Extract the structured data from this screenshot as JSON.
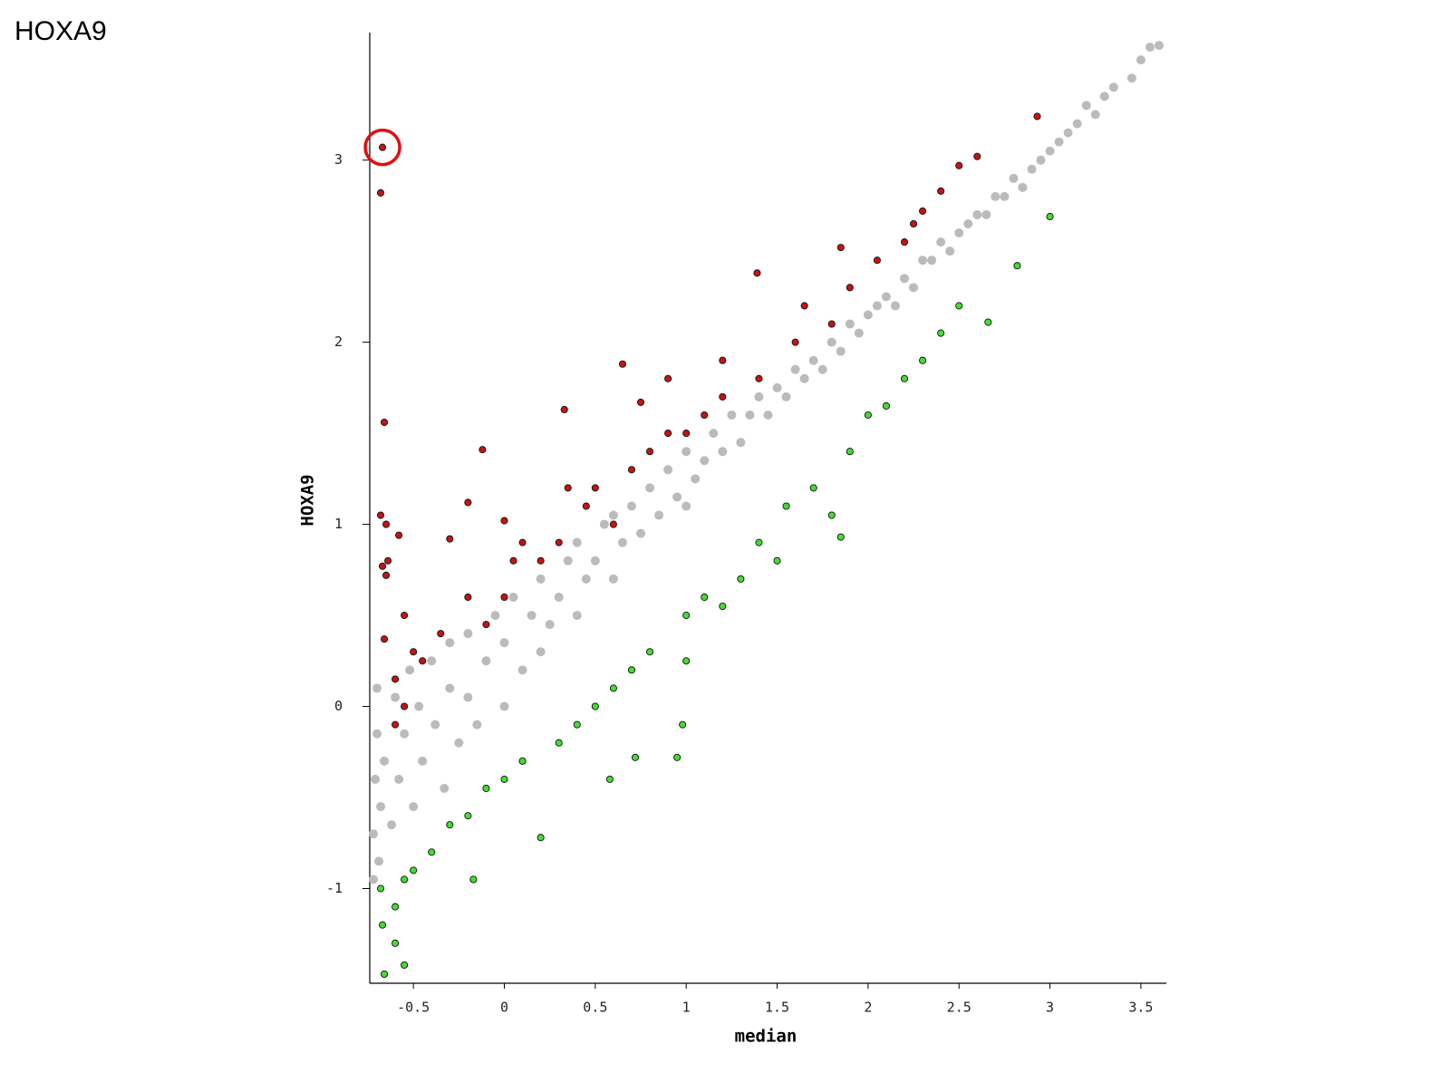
{
  "chart_data": {
    "type": "scatter",
    "title": "HOXA9",
    "x_label": "median",
    "y_label": "HOXA9",
    "xlim": [
      -0.74,
      3.64
    ],
    "ylim": [
      -1.52,
      3.7
    ],
    "xticks": [
      -0.5,
      0,
      0.5,
      1,
      1.5,
      2,
      2.5,
      3,
      3.5
    ],
    "yticks": [
      -1,
      0,
      1,
      2,
      3
    ],
    "highlight_color": "#e01010",
    "series": [
      {
        "color": "#bbbbbb",
        "outline": false,
        "x": [
          -0.72,
          -0.72,
          -0.71,
          -0.7,
          -0.7,
          -0.69,
          -0.68,
          -0.66,
          -0.62,
          -0.6,
          -0.58,
          -0.55,
          -0.52,
          -0.5,
          -0.47,
          -0.45,
          -0.4,
          -0.38,
          -0.33,
          -0.3,
          -0.3,
          -0.25,
          -0.2,
          -0.2,
          -0.15,
          -0.1,
          -0.05,
          0,
          0,
          0.05,
          0.1,
          0.15,
          0.2,
          0.2,
          0.25,
          0.3,
          0.35,
          0.4,
          0.4,
          0.45,
          0.5,
          0.55,
          0.6,
          0.6,
          0.65,
          0.7,
          0.75,
          0.8,
          0.85,
          0.9,
          0.95,
          1.0,
          1.0,
          1.05,
          1.1,
          1.15,
          1.2,
          1.25,
          1.3,
          1.35,
          1.4,
          1.45,
          1.5,
          1.55,
          1.6,
          1.65,
          1.7,
          1.75,
          1.8,
          1.85,
          1.9,
          1.95,
          2.0,
          2.05,
          2.1,
          2.15,
          2.2,
          2.25,
          2.3,
          2.35,
          2.4,
          2.45,
          2.5,
          2.55,
          2.6,
          2.65,
          2.7,
          2.75,
          2.8,
          2.85,
          2.9,
          2.95,
          3.0,
          3.05,
          3.1,
          3.15,
          3.2,
          3.25,
          3.3,
          3.35,
          3.45,
          3.5,
          3.55,
          3.6
        ],
        "values": [
          -0.95,
          -0.7,
          -0.4,
          -0.15,
          0.1,
          -0.85,
          -0.55,
          -0.3,
          -0.65,
          0.05,
          -0.4,
          -0.15,
          0.2,
          -0.55,
          0.0,
          -0.3,
          0.25,
          -0.1,
          -0.45,
          0.1,
          0.35,
          -0.2,
          0.05,
          0.4,
          -0.1,
          0.25,
          0.5,
          0.0,
          0.35,
          0.6,
          0.2,
          0.5,
          0.3,
          0.7,
          0.45,
          0.6,
          0.8,
          0.5,
          0.9,
          0.7,
          0.8,
          1.0,
          0.7,
          1.05,
          0.9,
          1.1,
          0.95,
          1.2,
          1.05,
          1.3,
          1.15,
          1.1,
          1.4,
          1.25,
          1.35,
          1.5,
          1.4,
          1.6,
          1.45,
          1.6,
          1.7,
          1.6,
          1.75,
          1.7,
          1.85,
          1.8,
          1.9,
          1.85,
          2.0,
          1.95,
          2.1,
          2.05,
          2.15,
          2.2,
          2.25,
          2.2,
          2.35,
          2.3,
          2.45,
          2.45,
          2.55,
          2.5,
          2.6,
          2.65,
          2.7,
          2.7,
          2.8,
          2.8,
          2.9,
          2.85,
          2.95,
          3.0,
          3.05,
          3.1,
          3.15,
          3.2,
          3.3,
          3.25,
          3.35,
          3.4,
          3.45,
          3.55,
          3.62,
          3.63
        ]
      },
      {
        "color": "#c41414",
        "outline": true,
        "x": [
          -0.67,
          -0.68,
          -0.66,
          -0.68,
          -0.65,
          -0.58,
          -0.67,
          -0.64,
          -0.65,
          -0.66,
          -0.6,
          -0.55,
          -0.5,
          -0.6,
          -0.55,
          -0.45,
          -0.35,
          -0.3,
          -0.2,
          -0.12,
          -0.2,
          -0.1,
          0,
          0,
          0.05,
          0.1,
          0.2,
          0.3,
          0.35,
          0.33,
          0.45,
          0.5,
          0.6,
          0.65,
          0.75,
          0.7,
          0.8,
          0.9,
          0.9,
          1.0,
          1.1,
          1.2,
          1.2,
          1.4,
          1.39,
          1.6,
          1.65,
          1.8,
          1.85,
          1.9,
          2.05,
          2.2,
          2.25,
          2.3,
          2.4,
          2.5,
          2.6,
          2.93
        ],
        "values": [
          3.07,
          2.82,
          1.56,
          1.05,
          1.0,
          0.94,
          0.77,
          0.8,
          0.72,
          0.37,
          0.15,
          0.5,
          0.3,
          -0.1,
          0.0,
          0.25,
          0.4,
          0.92,
          1.12,
          1.41,
          0.6,
          0.45,
          0.6,
          1.02,
          0.8,
          0.9,
          0.8,
          0.9,
          1.2,
          1.63,
          1.1,
          1.2,
          1.0,
          1.88,
          1.67,
          1.3,
          1.4,
          1.5,
          1.8,
          1.5,
          1.6,
          1.7,
          1.9,
          1.8,
          2.38,
          2.0,
          2.2,
          2.1,
          2.52,
          2.3,
          2.45,
          2.55,
          2.65,
          2.72,
          2.83,
          2.97,
          3.02,
          3.24
        ]
      },
      {
        "color": "#44dd33",
        "outline": true,
        "x": [
          -0.68,
          -0.67,
          -0.66,
          -0.6,
          -0.55,
          -0.6,
          -0.55,
          -0.5,
          -0.4,
          -0.3,
          -0.2,
          -0.17,
          -0.1,
          0,
          0.1,
          0.2,
          0.3,
          0.4,
          0.5,
          0.58,
          0.6,
          0.7,
          0.72,
          0.8,
          0.95,
          0.98,
          1.0,
          1.0,
          1.1,
          1.2,
          1.3,
          1.4,
          1.5,
          1.55,
          1.7,
          1.8,
          1.85,
          1.9,
          2.0,
          2.1,
          2.2,
          2.3,
          2.4,
          2.5,
          2.66,
          2.82,
          3.0
        ],
        "values": [
          -1.0,
          -1.2,
          -1.47,
          -1.3,
          -1.42,
          -1.1,
          -0.95,
          -0.9,
          -0.8,
          -0.65,
          -0.6,
          -0.95,
          -0.45,
          -0.4,
          -0.3,
          -0.72,
          -0.2,
          -0.1,
          0.0,
          -0.4,
          0.1,
          0.2,
          -0.28,
          0.3,
          -0.28,
          -0.1,
          0.25,
          0.5,
          0.6,
          0.55,
          0.7,
          0.9,
          0.8,
          1.1,
          1.2,
          1.05,
          0.93,
          1.4,
          1.6,
          1.65,
          1.8,
          1.9,
          2.05,
          2.2,
          2.11,
          2.42,
          2.69
        ]
      }
    ]
  }
}
